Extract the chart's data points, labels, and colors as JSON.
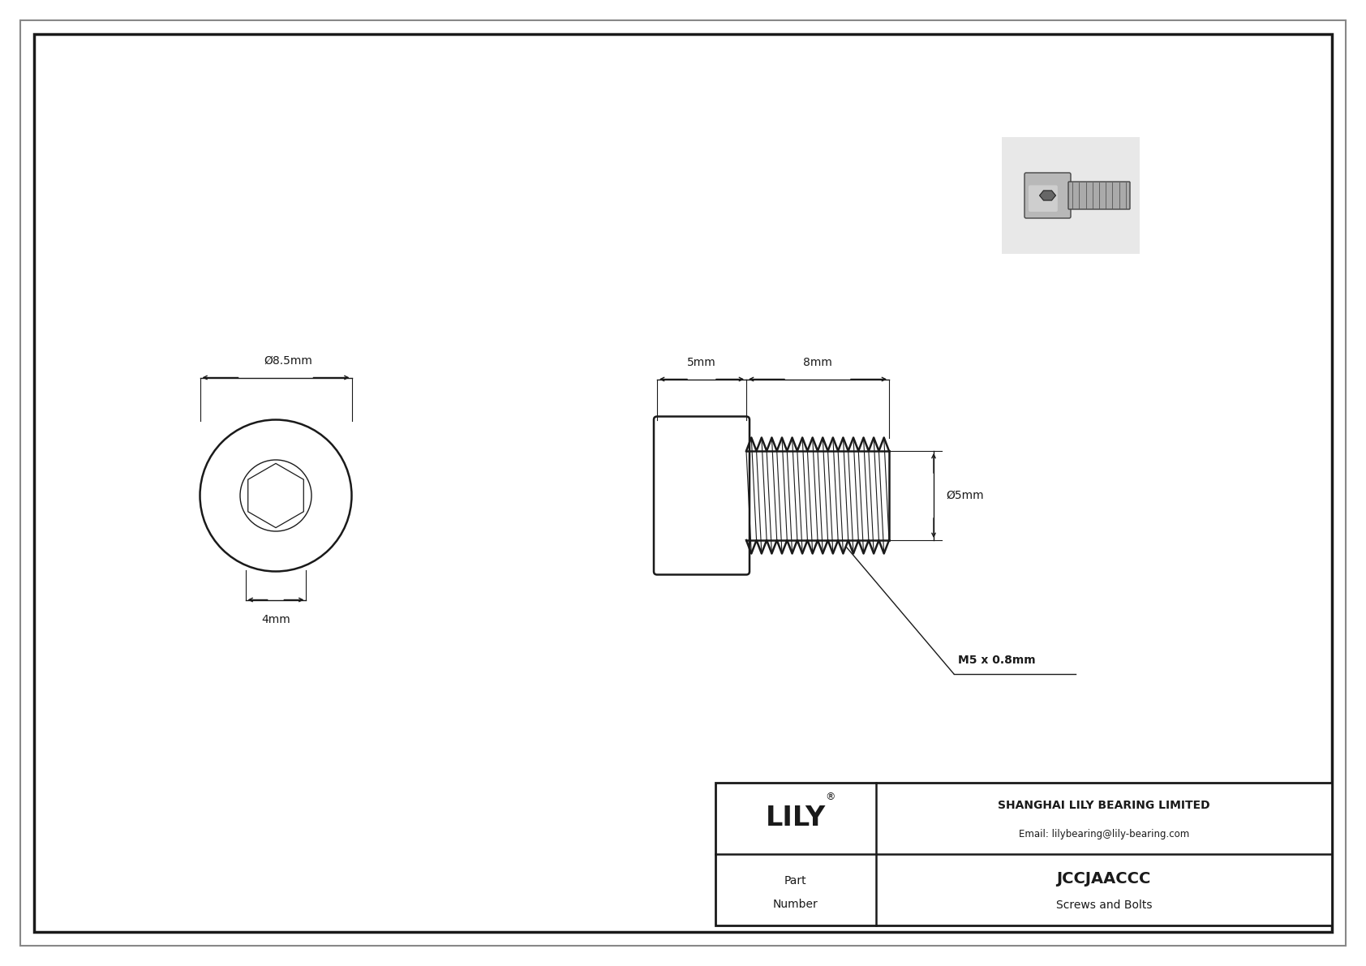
{
  "bg_color": "#ffffff",
  "drawing_bg": "#ffffff",
  "line_color": "#1a1a1a",
  "part_number": "JCCJAACCC",
  "part_category": "Screws and Bolts",
  "company_name": "SHANGHAI LILY BEARING LIMITED",
  "company_email": "Email: lilybearing@lily-bearing.com",
  "company_logo": "LILY",
  "dim_head_diam": "Ø8.5mm",
  "dim_hex_diam": "4mm",
  "dim_head_len": "5mm",
  "dim_shaft_len": "8mm",
  "dim_shaft_diam": "Ø5mm",
  "thread_label": "M5 x 0.8mm"
}
